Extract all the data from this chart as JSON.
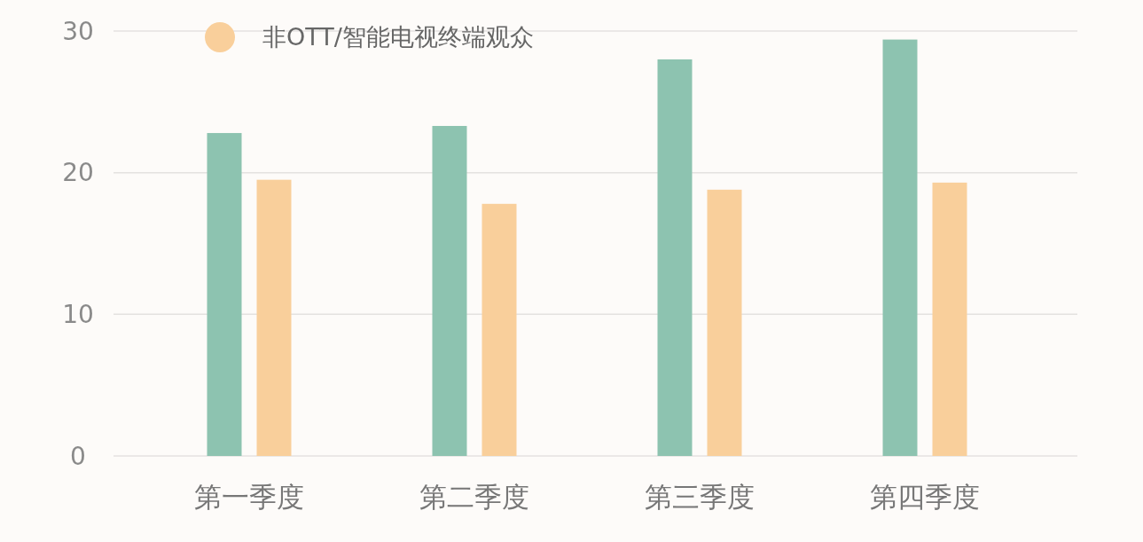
{
  "chart_data": {
    "type": "bar",
    "categories": [
      "第一季度",
      "第二季度",
      "第三季度",
      "第四季度"
    ],
    "series": [
      {
        "color": "#8dc3b0",
        "values": [
          22.8,
          23.3,
          28.0,
          29.4
        ]
      },
      {
        "name": "非OTT/智能电视终端观众",
        "color": "#f9cf9b",
        "values": [
          19.5,
          17.8,
          18.8,
          19.3
        ]
      }
    ],
    "ylim": [
      0,
      30
    ],
    "yticks": [
      0,
      10,
      20,
      30
    ],
    "grid": "y",
    "legend": "top left",
    "marker": "circle"
  }
}
